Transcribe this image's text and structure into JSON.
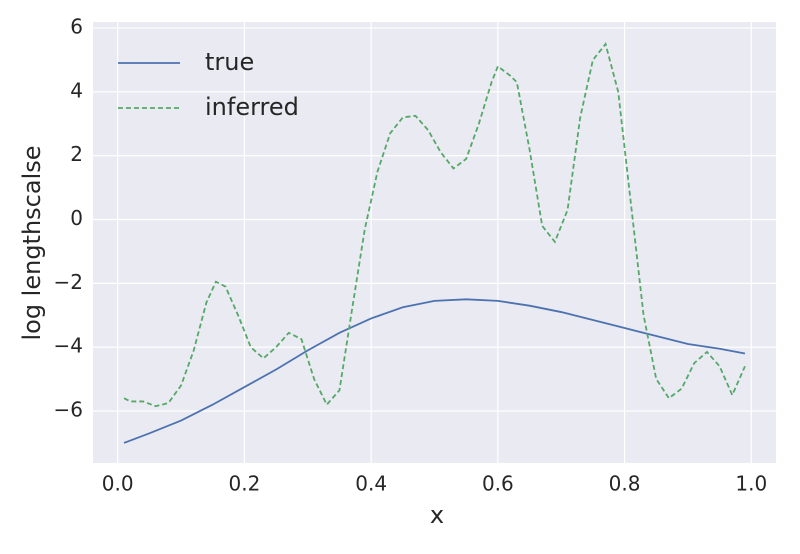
{
  "chart_data": {
    "type": "line",
    "xlabel": "x",
    "ylabel": "log lengthscalse",
    "xlim": [
      -0.039,
      1.039
    ],
    "ylim": [
      -7.63,
      6.19
    ],
    "xticks": [
      {
        "value": 0,
        "label": "0.0"
      },
      0.2,
      0.4,
      0.6,
      0.8,
      {
        "value": 1,
        "label": "1.0"
      }
    ],
    "yticks": [
      {
        "value": -6,
        "label": "−6"
      },
      {
        "value": -4,
        "label": "−4"
      },
      {
        "value": -2,
        "label": "−2"
      },
      0,
      2,
      4,
      6
    ],
    "grid": true,
    "legend": "upper left",
    "series": [
      {
        "name": "true",
        "color": "#4c72b0",
        "dash": false,
        "x": [
          0.01,
          0.05,
          0.1,
          0.15,
          0.2,
          0.25,
          0.3,
          0.35,
          0.4,
          0.45,
          0.5,
          0.55,
          0.6,
          0.65,
          0.7,
          0.75,
          0.8,
          0.85,
          0.9,
          0.95,
          0.99
        ],
        "values": [
          -7.0,
          -6.7,
          -6.3,
          -5.8,
          -5.25,
          -4.7,
          -4.1,
          -3.55,
          -3.1,
          -2.75,
          -2.55,
          -2.5,
          -2.55,
          -2.7,
          -2.9,
          -3.15,
          -3.4,
          -3.65,
          -3.9,
          -4.05,
          -4.2
        ]
      },
      {
        "name": "inferred",
        "color": "#55a868",
        "dash": true,
        "x": [
          0.01,
          0.02,
          0.04,
          0.06,
          0.08,
          0.1,
          0.12,
          0.14,
          0.155,
          0.17,
          0.19,
          0.21,
          0.23,
          0.25,
          0.27,
          0.29,
          0.31,
          0.33,
          0.35,
          0.37,
          0.39,
          0.41,
          0.43,
          0.45,
          0.47,
          0.49,
          0.51,
          0.53,
          0.55,
          0.57,
          0.59,
          0.6,
          0.62,
          0.63,
          0.65,
          0.67,
          0.69,
          0.71,
          0.73,
          0.75,
          0.77,
          0.79,
          0.81,
          0.83,
          0.85,
          0.87,
          0.89,
          0.91,
          0.93,
          0.95,
          0.97,
          0.99
        ],
        "values": [
          -5.6,
          -5.7,
          -5.7,
          -5.85,
          -5.75,
          -5.2,
          -4.1,
          -2.6,
          -1.95,
          -2.1,
          -3.0,
          -4.0,
          -4.35,
          -4.0,
          -3.55,
          -3.75,
          -5.0,
          -5.8,
          -5.35,
          -2.8,
          -0.3,
          1.5,
          2.7,
          3.2,
          3.25,
          2.8,
          2.1,
          1.6,
          1.9,
          3.0,
          4.3,
          4.8,
          4.5,
          4.3,
          2.2,
          -0.2,
          -0.7,
          0.3,
          3.2,
          5.0,
          5.5,
          4.0,
          0.5,
          -3.0,
          -5.0,
          -5.6,
          -5.3,
          -4.5,
          -4.15,
          -4.6,
          -5.5,
          -4.6
        ]
      }
    ]
  }
}
